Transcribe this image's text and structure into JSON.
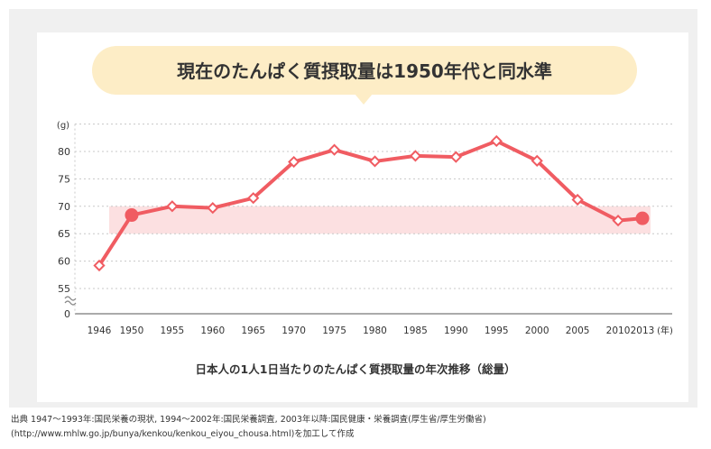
{
  "headline": "現在のたんぱく質摂取量は1950年代と同水準",
  "chart_data": {
    "type": "line",
    "title": "日本人の1人1日当たりのたんぱく質摂取量の年次推移（総量）",
    "ylabel": "(g)",
    "xlabel": "(年)",
    "ylim": [
      50,
      85
    ],
    "yticks": [
      0,
      55,
      60,
      65,
      70,
      75,
      80
    ],
    "xticks": [
      "1946",
      "1950",
      "1955",
      "1960",
      "1965",
      "1970",
      "1975",
      "1980",
      "1985",
      "1990",
      "1995",
      "2000",
      "2005",
      "2010",
      "2013"
    ],
    "band": [
      65,
      70
    ],
    "axis_break": true,
    "grid": true,
    "series": [
      {
        "x": [
          1946,
          1950,
          1955,
          1960,
          1965,
          1970,
          1975,
          1980,
          1985,
          1990,
          1995,
          2000,
          2005,
          2010,
          2013
        ],
        "values": [
          59.2,
          68.4,
          70.0,
          69.7,
          71.5,
          78.1,
          80.3,
          78.2,
          79.2,
          79.0,
          81.9,
          78.3,
          71.2,
          67.4,
          67.8
        ],
        "highlighted": [
          1950,
          2013
        ]
      }
    ]
  },
  "source": {
    "line1": "出典 1947～1993年:国民栄養の現状, 1994～2002年:国民栄養調査, 2003年以降:国民健康・栄養調査(厚生省/厚生労働省)",
    "line2": "(http://www.mhlw.go.jp/bunya/kenkou/kenkou_eiyou_chousa.html)を加工して作成"
  },
  "colors": {
    "line": "#f05c62",
    "band": "#fce0e1",
    "bubble": "#fdedc6",
    "grid": "#c8c8c8",
    "text": "#333333",
    "panel": "#f0f0f0"
  }
}
